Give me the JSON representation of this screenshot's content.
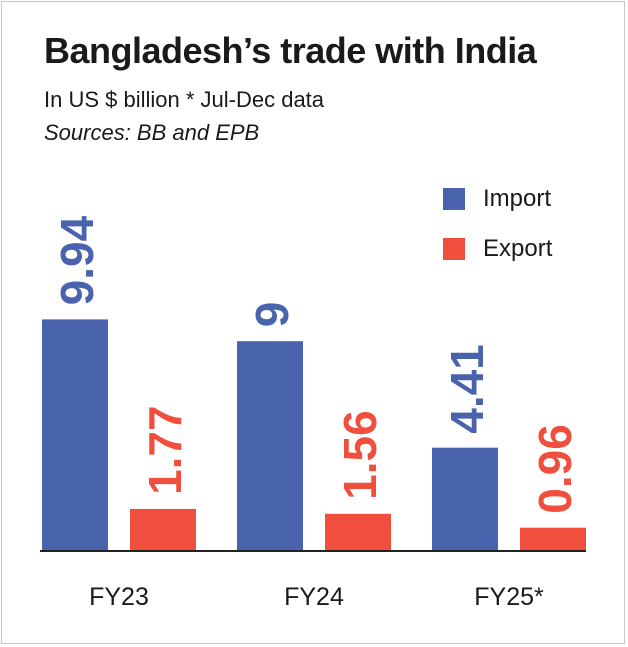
{
  "title": "Bangladesh’s trade with India",
  "subtitle": "In US $ billion * Jul-Dec data",
  "sources": "Sources: BB and EPB",
  "colors": {
    "import": "#4a63ad",
    "export": "#ef4f3c",
    "axis": "#222222"
  },
  "chart_data": {
    "type": "bar",
    "title": "Bangladesh’s trade with India",
    "xlabel": "",
    "ylabel": "",
    "categories": [
      "FY23",
      "FY24",
      "FY25*"
    ],
    "series": [
      {
        "name": "Import",
        "values": [
          9.94,
          9,
          4.41
        ],
        "labels": [
          "9.94",
          "9",
          "4.41"
        ]
      },
      {
        "name": "Export",
        "values": [
          1.77,
          1.56,
          0.96
        ],
        "labels": [
          "1.77",
          "1.56",
          "0.96"
        ]
      }
    ],
    "ylim": [
      0,
      12
    ],
    "grid": false,
    "legend": "top-right"
  }
}
